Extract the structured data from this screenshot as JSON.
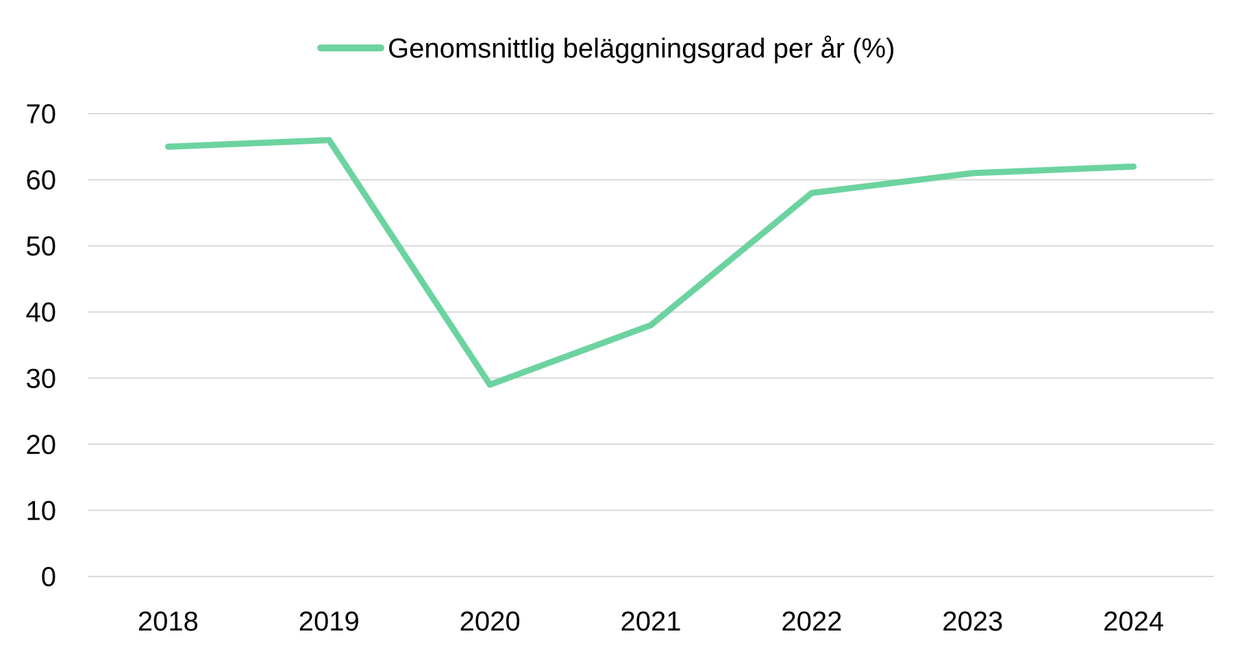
{
  "chart_data": {
    "type": "line",
    "title": "",
    "xlabel": "",
    "ylabel": "",
    "categories": [
      "2018",
      "2019",
      "2020",
      "2021",
      "2022",
      "2023",
      "2024"
    ],
    "ylim": [
      0,
      70
    ],
    "yticks": [
      "0",
      "10",
      "20",
      "30",
      "40",
      "50",
      "60",
      "70"
    ],
    "grid": true,
    "legend_position": "top-center",
    "series": [
      {
        "name": "Genomsnittlig beläggningsgrad per år (%)",
        "values": [
          65,
          66,
          29,
          38,
          58,
          61,
          62
        ],
        "color": "#6cd3a0"
      }
    ]
  },
  "colors": {
    "gridline": "#d9d9d9",
    "text": "#000000",
    "background": "#ffffff"
  }
}
